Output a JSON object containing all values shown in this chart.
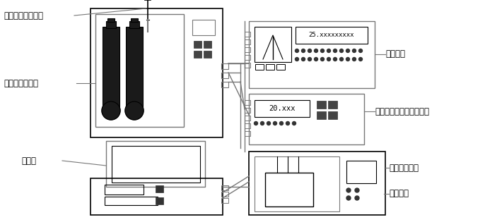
{
  "bg_color": "#ffffff",
  "lc": "#000000",
  "gc": "#777777",
  "dark": "#1a1a1a",
  "labels": {
    "biaozun_pt": "标准铂电阻温度计",
    "water_triple": "水三相点恒温槽",
    "computer": "计算机",
    "temp_bridge": "测温电桥",
    "precision_thermo": "精密数显热敏电阻温度计",
    "precision_oil": "精密恒温油槽",
    "standard_resistor": "标准电阻"
  },
  "fs": 8.5,
  "fig_w": 6.86,
  "fig_h": 3.15,
  "dpi": 100
}
